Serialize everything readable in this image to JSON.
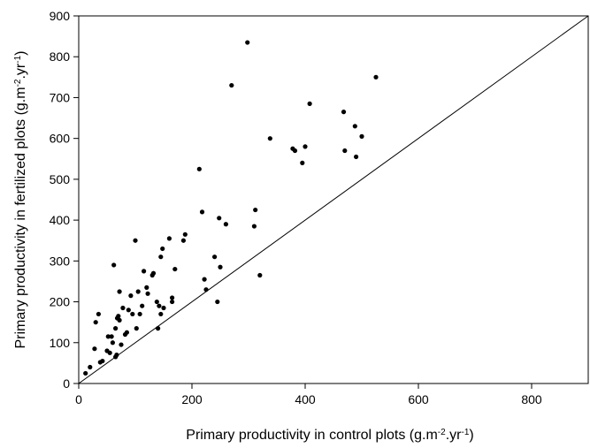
{
  "chart_data": {
    "type": "scatter",
    "xlabel": {
      "main": "Primary productivity in control plots (g.m",
      "sup": "-2",
      "mid": ".yr",
      "sup2": "-1",
      "end": ")"
    },
    "ylabel": {
      "main": "Primary productivity in fertilized plots (g.m",
      "sup": "-2",
      "mid": ".yr",
      "sup2": "-1",
      "end": ")"
    },
    "xlim": [
      0,
      900
    ],
    "ylim": [
      0,
      900
    ],
    "xticks": [
      0,
      200,
      400,
      600,
      800
    ],
    "yticks": [
      0,
      100,
      200,
      300,
      400,
      500,
      600,
      700,
      800,
      900
    ],
    "reference_line": {
      "slope": 1,
      "intercept": 0
    },
    "grid": false,
    "marker_color": "#000000",
    "points": [
      [
        12,
        25
      ],
      [
        20,
        40
      ],
      [
        28,
        85
      ],
      [
        30,
        150
      ],
      [
        35,
        170
      ],
      [
        38,
        52
      ],
      [
        42,
        55
      ],
      [
        50,
        80
      ],
      [
        55,
        75
      ],
      [
        52,
        115
      ],
      [
        58,
        115
      ],
      [
        60,
        100
      ],
      [
        62,
        290
      ],
      [
        65,
        135
      ],
      [
        65,
        65
      ],
      [
        67,
        70
      ],
      [
        68,
        160
      ],
      [
        70,
        165
      ],
      [
        72,
        225
      ],
      [
        72,
        155
      ],
      [
        75,
        95
      ],
      [
        78,
        185
      ],
      [
        82,
        120
      ],
      [
        85,
        125
      ],
      [
        88,
        180
      ],
      [
        92,
        215
      ],
      [
        95,
        170
      ],
      [
        100,
        350
      ],
      [
        102,
        135
      ],
      [
        105,
        225
      ],
      [
        108,
        170
      ],
      [
        112,
        190
      ],
      [
        115,
        275
      ],
      [
        120,
        235
      ],
      [
        122,
        220
      ],
      [
        130,
        265
      ],
      [
        132,
        270
      ],
      [
        138,
        200
      ],
      [
        140,
        135
      ],
      [
        142,
        190
      ],
      [
        145,
        170
      ],
      [
        145,
        310
      ],
      [
        148,
        330
      ],
      [
        150,
        185
      ],
      [
        160,
        355
      ],
      [
        165,
        200
      ],
      [
        165,
        210
      ],
      [
        170,
        280
      ],
      [
        185,
        350
      ],
      [
        188,
        365
      ],
      [
        213,
        525
      ],
      [
        218,
        420
      ],
      [
        222,
        255
      ],
      [
        225,
        230
      ],
      [
        240,
        310
      ],
      [
        245,
        200
      ],
      [
        248,
        405
      ],
      [
        250,
        285
      ],
      [
        260,
        390
      ],
      [
        270,
        730
      ],
      [
        298,
        835
      ],
      [
        310,
        385
      ],
      [
        312,
        425
      ],
      [
        320,
        265
      ],
      [
        338,
        600
      ],
      [
        378,
        575
      ],
      [
        382,
        570
      ],
      [
        395,
        540
      ],
      [
        400,
        580
      ],
      [
        408,
        685
      ],
      [
        468,
        665
      ],
      [
        470,
        570
      ],
      [
        488,
        630
      ],
      [
        490,
        555
      ],
      [
        500,
        605
      ],
      [
        525,
        750
      ]
    ]
  }
}
